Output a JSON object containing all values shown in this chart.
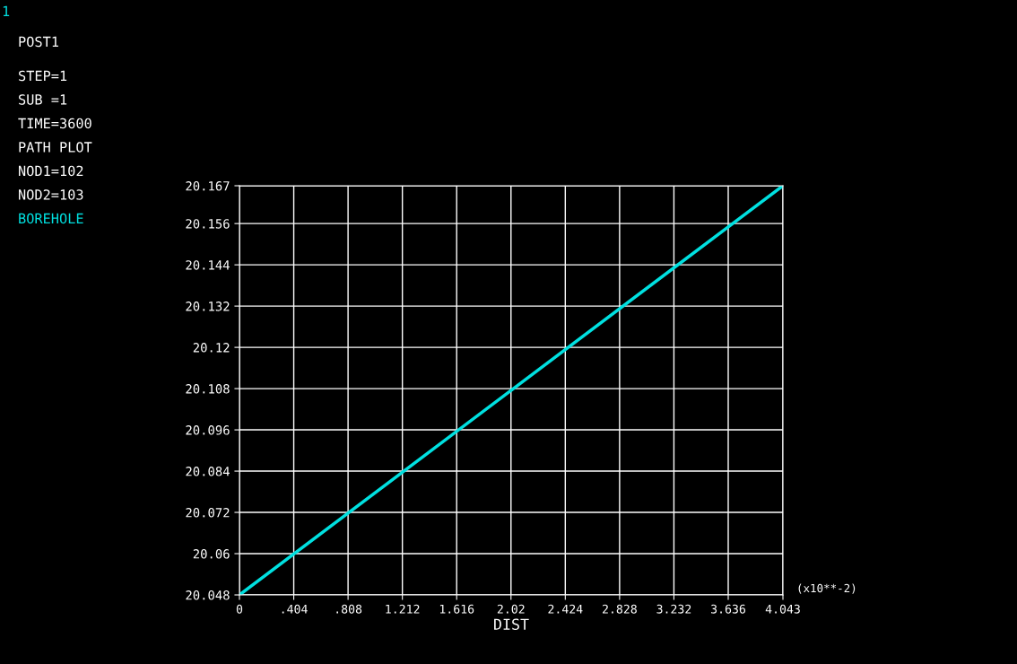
{
  "chart_data": {
    "type": "line",
    "xlabel": "DIST",
    "annotations": [
      "1",
      "POST1",
      "STEP=1",
      "SUB =1",
      "TIME=3600",
      "PATH PLOT",
      "NOD1=102",
      "NOD2=103",
      "(x10**-2)"
    ],
    "x": [
      0,
      4.043
    ],
    "series": [
      {
        "name": "BOREHOLE",
        "color": "#00e0e0",
        "values": [
          20.048,
          20.167
        ]
      }
    ],
    "xlim": [
      0,
      4.043
    ],
    "ylim": [
      20.048,
      20.167
    ],
    "xticks": [
      0,
      {
        "value": 0.404,
        "label": ".404"
      },
      {
        "value": 0.808,
        "label": ".808"
      },
      1.212,
      1.616,
      2.02,
      2.424,
      2.828,
      3.232,
      3.636,
      4.043
    ],
    "yticks": [
      20.048,
      20.06,
      20.072,
      20.084,
      20.096,
      20.108,
      20.12,
      20.132,
      20.144,
      20.156,
      20.167
    ],
    "grid": true,
    "legend": "top left",
    "marker": "none",
    "line_style": "solid"
  }
}
